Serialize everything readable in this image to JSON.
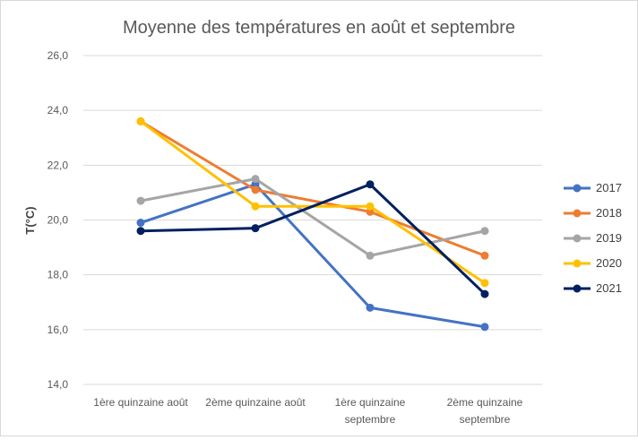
{
  "chart_data": {
    "type": "line",
    "title": "Moyenne des températures en août et septembre",
    "xlabel": "",
    "ylabel": "T(°C)",
    "ylim": [
      14,
      26
    ],
    "ytick_step": 2,
    "ytick_labels": [
      "14,0",
      "16,0",
      "18,0",
      "20,0",
      "22,0",
      "24,0",
      "26,0"
    ],
    "categories": [
      [
        "1ère quinzaine août"
      ],
      [
        "2ème quinzaine août"
      ],
      [
        "1ère quinzaine",
        "septembre"
      ],
      [
        "2ème quinzaine",
        "septembre"
      ]
    ],
    "grid": true,
    "legend_position": "right",
    "series": [
      {
        "name": "2017",
        "color": "#4472c4",
        "values": [
          19.9,
          21.3,
          16.8,
          16.1
        ]
      },
      {
        "name": "2018",
        "color": "#ed7d31",
        "values": [
          23.6,
          21.1,
          20.3,
          18.7
        ]
      },
      {
        "name": "2019",
        "color": "#a5a5a5",
        "values": [
          20.7,
          21.5,
          18.7,
          19.6
        ]
      },
      {
        "name": "2020",
        "color": "#ffc000",
        "values": [
          23.6,
          20.5,
          20.5,
          17.7
        ]
      },
      {
        "name": "2021",
        "color": "#002060",
        "values": [
          19.6,
          19.7,
          21.3,
          17.3
        ]
      }
    ]
  }
}
